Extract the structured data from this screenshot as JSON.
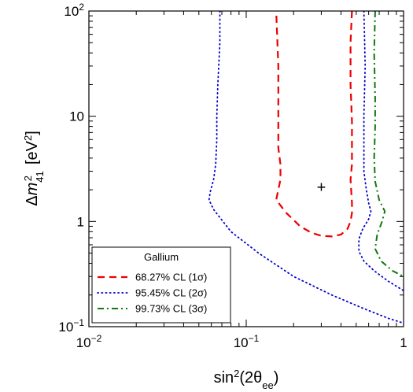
{
  "chart_data": {
    "type": "line",
    "title": "",
    "xlabel": "sin²(2θee)",
    "ylabel": "Δm²41 [eV²]",
    "xscale": "log",
    "yscale": "log",
    "xlim": [
      0.01,
      1
    ],
    "ylim": [
      0.1,
      100
    ],
    "x_ticks": [
      {
        "value": 0.01,
        "base": "10",
        "exp": "−2"
      },
      {
        "value": 0.1,
        "base": "10",
        "exp": "−1"
      },
      {
        "value": 1,
        "base": "1",
        "exp": ""
      }
    ],
    "y_ticks": [
      {
        "value": 0.1,
        "base": "10",
        "exp": "−1"
      },
      {
        "value": 1,
        "base": "1",
        "exp": ""
      },
      {
        "value": 10,
        "base": "10",
        "exp": ""
      },
      {
        "value": 100,
        "base": "10",
        "exp": "2"
      }
    ],
    "grid": false,
    "legend": {
      "title": "Gallium",
      "position": "bottom-left"
    },
    "best_fit": {
      "x": 0.3,
      "y": 2.1,
      "marker": "+"
    },
    "series": [
      {
        "name": "68.27% CL (1σ)",
        "color": "#ee0000",
        "dash": "dashed",
        "points": [
          [
            0.47,
            100
          ],
          [
            0.46,
            50
          ],
          [
            0.46,
            20
          ],
          [
            0.47,
            9
          ],
          [
            0.47,
            5
          ],
          [
            0.47,
            3.5
          ],
          [
            0.46,
            2.5
          ],
          [
            0.47,
            1.5
          ],
          [
            0.47,
            1.2
          ],
          [
            0.46,
            1.0
          ],
          [
            0.44,
            0.85
          ],
          [
            0.4,
            0.75
          ],
          [
            0.35,
            0.72
          ],
          [
            0.3,
            0.73
          ],
          [
            0.26,
            0.78
          ],
          [
            0.22,
            0.9
          ],
          [
            0.18,
            1.2
          ],
          [
            0.155,
            1.6
          ],
          [
            0.16,
            2.0
          ],
          [
            0.165,
            2.5
          ],
          [
            0.165,
            3.5
          ],
          [
            0.16,
            5
          ],
          [
            0.16,
            10
          ],
          [
            0.16,
            30
          ],
          [
            0.155,
            100
          ]
        ]
      },
      {
        "name": "95.45% CL (2σ)",
        "color": "#0000cc",
        "dash": "dotted",
        "segments": [
          [
            [
              0.068,
              100
            ],
            [
              0.068,
              50
            ],
            [
              0.066,
              20
            ],
            [
              0.065,
              10
            ],
            [
              0.065,
              6
            ],
            [
              0.064,
              3.5
            ],
            [
              0.062,
              2.5
            ],
            [
              0.059,
              1.9
            ],
            [
              0.058,
              1.6
            ],
            [
              0.062,
              1.3
            ],
            [
              0.08,
              0.8
            ],
            [
              0.12,
              0.5
            ],
            [
              0.2,
              0.3
            ],
            [
              0.35,
              0.2
            ],
            [
              0.55,
              0.15
            ],
            [
              0.8,
              0.12
            ],
            [
              1.0,
              0.108
            ]
          ],
          [
            [
              0.56,
              100
            ],
            [
              0.57,
              30
            ],
            [
              0.56,
              10
            ],
            [
              0.56,
              4
            ],
            [
              0.56,
              3
            ],
            [
              0.58,
              2.0
            ],
            [
              0.6,
              1.5
            ],
            [
              0.62,
              1.25
            ],
            [
              0.6,
              1.05
            ],
            [
              0.55,
              0.85
            ],
            [
              0.52,
              0.68
            ],
            [
              0.52,
              0.52
            ],
            [
              0.56,
              0.42
            ],
            [
              0.65,
              0.34
            ],
            [
              0.8,
              0.27
            ],
            [
              1.0,
              0.22
            ]
          ]
        ]
      },
      {
        "name": "99.73% CL (3σ)",
        "color": "#117711",
        "dash": "dashdot",
        "segments": [
          [
            [
              0.66,
              100
            ],
            [
              0.65,
              40
            ],
            [
              0.66,
              15
            ],
            [
              0.66,
              8
            ],
            [
              0.65,
              4
            ],
            [
              0.66,
              2.4
            ],
            [
              0.7,
              1.6
            ],
            [
              0.76,
              1.25
            ],
            [
              0.73,
              1.0
            ],
            [
              0.68,
              0.75
            ],
            [
              0.66,
              0.55
            ],
            [
              0.72,
              0.42
            ],
            [
              0.85,
              0.34
            ],
            [
              1.0,
              0.3
            ]
          ]
        ]
      }
    ]
  }
}
